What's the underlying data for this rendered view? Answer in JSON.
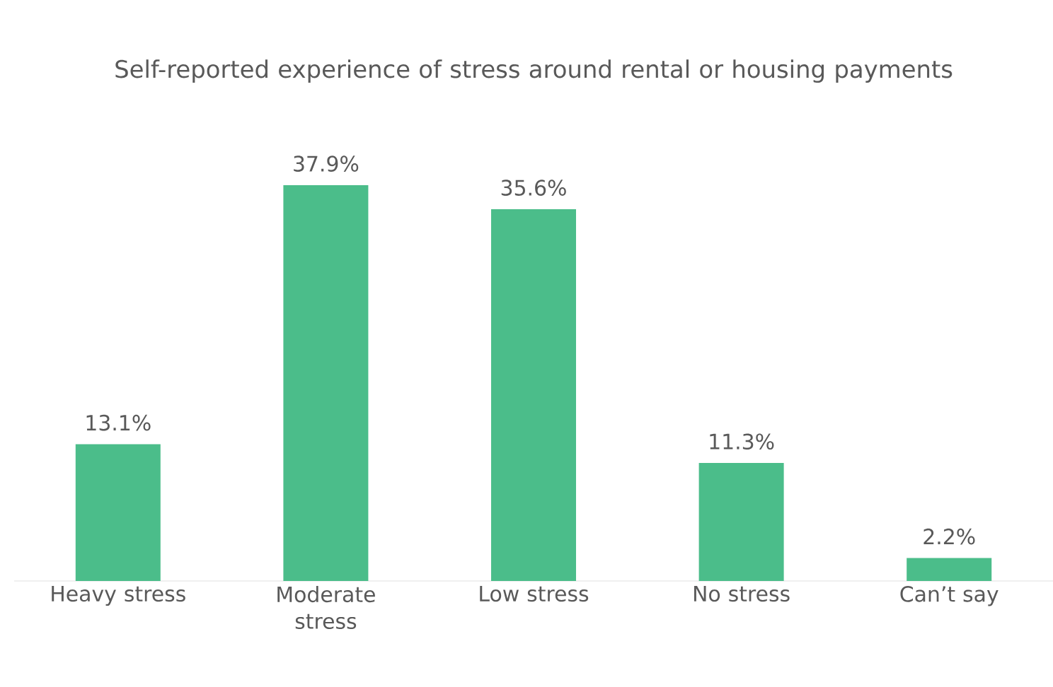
{
  "chart_data": {
    "type": "bar",
    "title": "Self-reported experience of stress around rental or housing payments",
    "categories": [
      "Heavy stress",
      "Moderate stress",
      "Low stress",
      "No stress",
      "Can’t say"
    ],
    "values": [
      13.1,
      37.9,
      35.6,
      11.3,
      2.2
    ],
    "value_labels": [
      "13.1%",
      "37.9%",
      "35.6%",
      "11.3%",
      "2.2%"
    ],
    "color": "#4bbd8a"
  }
}
